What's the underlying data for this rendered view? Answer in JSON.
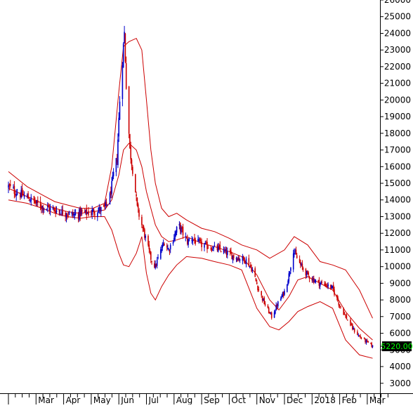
{
  "chart_data": {
    "type": "candlestick",
    "title": "",
    "xlabel": "",
    "ylabel": "",
    "ylim": [
      2400,
      26000
    ],
    "y_ticks": [
      3000,
      4000,
      5000,
      6000,
      7000,
      8000,
      9000,
      10000,
      11000,
      12000,
      13000,
      14000,
      15000,
      16000,
      17000,
      18000,
      19000,
      20000,
      21000,
      22000,
      23000,
      24000,
      25000,
      26000
    ],
    "month_labels": [
      "Mar",
      "Apr",
      "May",
      "Jun",
      "Jul",
      "Aug",
      "Sep",
      "Oct",
      "Nov",
      "Dec",
      "2018",
      "Feb",
      "Mar"
    ],
    "x_months": [
      "2017-02",
      "2017-03",
      "2017-04",
      "2017-05",
      "2017-06",
      "2017-07",
      "2017-08",
      "2017-09",
      "2017-10",
      "2017-11",
      "2017-12",
      "2018-01",
      "2018-02",
      "2018-03"
    ],
    "last_price_label": "5220.00",
    "colors": {
      "up": "#0000cc",
      "down": "#cc0000",
      "bands": "#cc0000",
      "last_price_bg": "#000000",
      "last_price_text": "#00ff00"
    },
    "close_anchors": [
      [
        "2017-02-01",
        14800
      ],
      [
        "2017-02-08",
        14500
      ],
      [
        "2017-02-15",
        14300
      ],
      [
        "2017-02-22",
        14100
      ],
      [
        "2017-03-01",
        13800
      ],
      [
        "2017-03-08",
        13600
      ],
      [
        "2017-03-15",
        13500
      ],
      [
        "2017-03-22",
        13400
      ],
      [
        "2017-03-29",
        13300
      ],
      [
        "2017-04-05",
        13200
      ],
      [
        "2017-04-12",
        13100
      ],
      [
        "2017-04-19",
        13200
      ],
      [
        "2017-04-26",
        13200
      ],
      [
        "2017-05-03",
        13300
      ],
      [
        "2017-05-10",
        13400
      ],
      [
        "2017-05-16",
        13500
      ],
      [
        "2017-05-22",
        14200
      ],
      [
        "2017-05-26",
        15500
      ],
      [
        "2017-05-30",
        16500
      ],
      [
        "2017-06-02",
        20000
      ],
      [
        "2017-06-05",
        22500
      ],
      [
        "2017-06-07",
        24000
      ],
      [
        "2017-06-09",
        21000
      ],
      [
        "2017-06-13",
        17000
      ],
      [
        "2017-06-17",
        15500
      ],
      [
        "2017-06-21",
        13500
      ],
      [
        "2017-06-26",
        12500
      ],
      [
        "2017-07-01",
        11500
      ],
      [
        "2017-07-06",
        10500
      ],
      [
        "2017-07-11",
        10000
      ],
      [
        "2017-07-16",
        10800
      ],
      [
        "2017-07-21",
        11500
      ],
      [
        "2017-07-26",
        11000
      ],
      [
        "2017-08-01",
        11800
      ],
      [
        "2017-08-06",
        12500
      ],
      [
        "2017-08-11",
        12000
      ],
      [
        "2017-08-16",
        11500
      ],
      [
        "2017-08-21",
        11700
      ],
      [
        "2017-08-26",
        11500
      ],
      [
        "2017-09-01",
        11300
      ],
      [
        "2017-09-08",
        11200
      ],
      [
        "2017-09-15",
        11100
      ],
      [
        "2017-09-22",
        11000
      ],
      [
        "2017-09-29",
        10800
      ],
      [
        "2017-10-06",
        10600
      ],
      [
        "2017-10-13",
        10500
      ],
      [
        "2017-10-20",
        10400
      ],
      [
        "2017-10-27",
        9800
      ],
      [
        "2017-11-03",
        8600
      ],
      [
        "2017-11-10",
        7700
      ],
      [
        "2017-11-17",
        7000
      ],
      [
        "2017-11-24",
        7800
      ],
      [
        "2017-12-01",
        8500
      ],
      [
        "2017-12-06",
        9500
      ],
      [
        "2017-12-11",
        11000
      ],
      [
        "2017-12-15",
        10500
      ],
      [
        "2017-12-20",
        10000
      ],
      [
        "2017-12-27",
        9500
      ],
      [
        "2018-01-03",
        9200
      ],
      [
        "2018-01-10",
        9000
      ],
      [
        "2018-01-17",
        8900
      ],
      [
        "2018-01-24",
        8700
      ],
      [
        "2018-01-31",
        7800
      ],
      [
        "2018-02-07",
        7000
      ],
      [
        "2018-02-14",
        6300
      ],
      [
        "2018-02-21",
        5800
      ],
      [
        "2018-02-28",
        5500
      ],
      [
        "2018-03-07",
        5220
      ]
    ],
    "upper_band": [
      [
        "2017-02-01",
        15700
      ],
      [
        "2017-02-20",
        14800
      ],
      [
        "2017-03-08",
        14300
      ],
      [
        "2017-03-22",
        13900
      ],
      [
        "2017-04-05",
        13700
      ],
      [
        "2017-04-19",
        13500
      ],
      [
        "2017-05-03",
        13500
      ],
      [
        "2017-05-16",
        13800
      ],
      [
        "2017-05-24",
        16000
      ],
      [
        "2017-06-01",
        20500
      ],
      [
        "2017-06-06",
        23200
      ],
      [
        "2017-06-12",
        23500
      ],
      [
        "2017-06-20",
        23700
      ],
      [
        "2017-06-26",
        23000
      ],
      [
        "2017-07-01",
        20000
      ],
      [
        "2017-07-06",
        17000
      ],
      [
        "2017-07-11",
        15000
      ],
      [
        "2017-07-18",
        13500
      ],
      [
        "2017-07-26",
        13000
      ],
      [
        "2017-08-04",
        13200
      ],
      [
        "2017-08-15",
        12800
      ],
      [
        "2017-09-01",
        12300
      ],
      [
        "2017-09-15",
        12100
      ],
      [
        "2017-10-01",
        11700
      ],
      [
        "2017-10-15",
        11300
      ],
      [
        "2017-11-01",
        11000
      ],
      [
        "2017-11-15",
        10500
      ],
      [
        "2017-12-01",
        11000
      ],
      [
        "2017-12-12",
        11800
      ],
      [
        "2017-12-27",
        11300
      ],
      [
        "2018-01-10",
        10300
      ],
      [
        "2018-01-24",
        10100
      ],
      [
        "2018-02-07",
        9800
      ],
      [
        "2018-02-21",
        8600
      ],
      [
        "2018-03-07",
        6900
      ]
    ],
    "middle_band": [
      [
        "2017-02-01",
        14700
      ],
      [
        "2017-02-20",
        14200
      ],
      [
        "2017-03-08",
        13800
      ],
      [
        "2017-03-22",
        13500
      ],
      [
        "2017-04-05",
        13300
      ],
      [
        "2017-04-19",
        13200
      ],
      [
        "2017-05-03",
        13300
      ],
      [
        "2017-05-16",
        13400
      ],
      [
        "2017-05-24",
        14000
      ],
      [
        "2017-06-01",
        15500
      ],
      [
        "2017-06-06",
        17000
      ],
      [
        "2017-06-12",
        17400
      ],
      [
        "2017-06-20",
        17000
      ],
      [
        "2017-06-26",
        16000
      ],
      [
        "2017-07-01",
        14500
      ],
      [
        "2017-07-06",
        13500
      ],
      [
        "2017-07-11",
        12500
      ],
      [
        "2017-07-18",
        11800
      ],
      [
        "2017-07-26",
        11500
      ],
      [
        "2017-08-04",
        11600
      ],
      [
        "2017-08-15",
        11800
      ],
      [
        "2017-09-01",
        11400
      ],
      [
        "2017-09-15",
        11200
      ],
      [
        "2017-10-01",
        10900
      ],
      [
        "2017-10-15",
        10600
      ],
      [
        "2017-11-01",
        9500
      ],
      [
        "2017-11-15",
        8000
      ],
      [
        "2017-11-25",
        7400
      ],
      [
        "2017-12-06",
        8200
      ],
      [
        "2017-12-16",
        9200
      ],
      [
        "2017-12-27",
        9400
      ],
      [
        "2018-01-10",
        9000
      ],
      [
        "2018-01-24",
        8600
      ],
      [
        "2018-02-07",
        7300
      ],
      [
        "2018-02-21",
        6300
      ],
      [
        "2018-03-07",
        5600
      ]
    ],
    "lower_band": [
      [
        "2017-02-01",
        14000
      ],
      [
        "2017-02-20",
        13800
      ],
      [
        "2017-03-08",
        13500
      ],
      [
        "2017-03-22",
        13200
      ],
      [
        "2017-04-05",
        13000
      ],
      [
        "2017-04-19",
        12900
      ],
      [
        "2017-05-03",
        13000
      ],
      [
        "2017-05-16",
        13000
      ],
      [
        "2017-05-24",
        12200
      ],
      [
        "2017-06-01",
        10800
      ],
      [
        "2017-06-06",
        10100
      ],
      [
        "2017-06-12",
        10000
      ],
      [
        "2017-06-20",
        10800
      ],
      [
        "2017-06-26",
        11800
      ],
      [
        "2017-07-01",
        9600
      ],
      [
        "2017-07-06",
        8400
      ],
      [
        "2017-07-11",
        8000
      ],
      [
        "2017-07-18",
        8800
      ],
      [
        "2017-07-26",
        9500
      ],
      [
        "2017-08-04",
        10100
      ],
      [
        "2017-08-15",
        10600
      ],
      [
        "2017-09-01",
        10500
      ],
      [
        "2017-09-15",
        10300
      ],
      [
        "2017-10-01",
        10100
      ],
      [
        "2017-10-15",
        9800
      ],
      [
        "2017-11-01",
        7500
      ],
      [
        "2017-11-15",
        6400
      ],
      [
        "2017-11-25",
        6200
      ],
      [
        "2017-12-06",
        6700
      ],
      [
        "2017-12-16",
        7300
      ],
      [
        "2017-12-27",
        7600
      ],
      [
        "2018-01-10",
        7900
      ],
      [
        "2018-01-24",
        7500
      ],
      [
        "2018-02-07",
        5600
      ],
      [
        "2018-02-21",
        4700
      ],
      [
        "2018-03-07",
        4500
      ]
    ]
  }
}
